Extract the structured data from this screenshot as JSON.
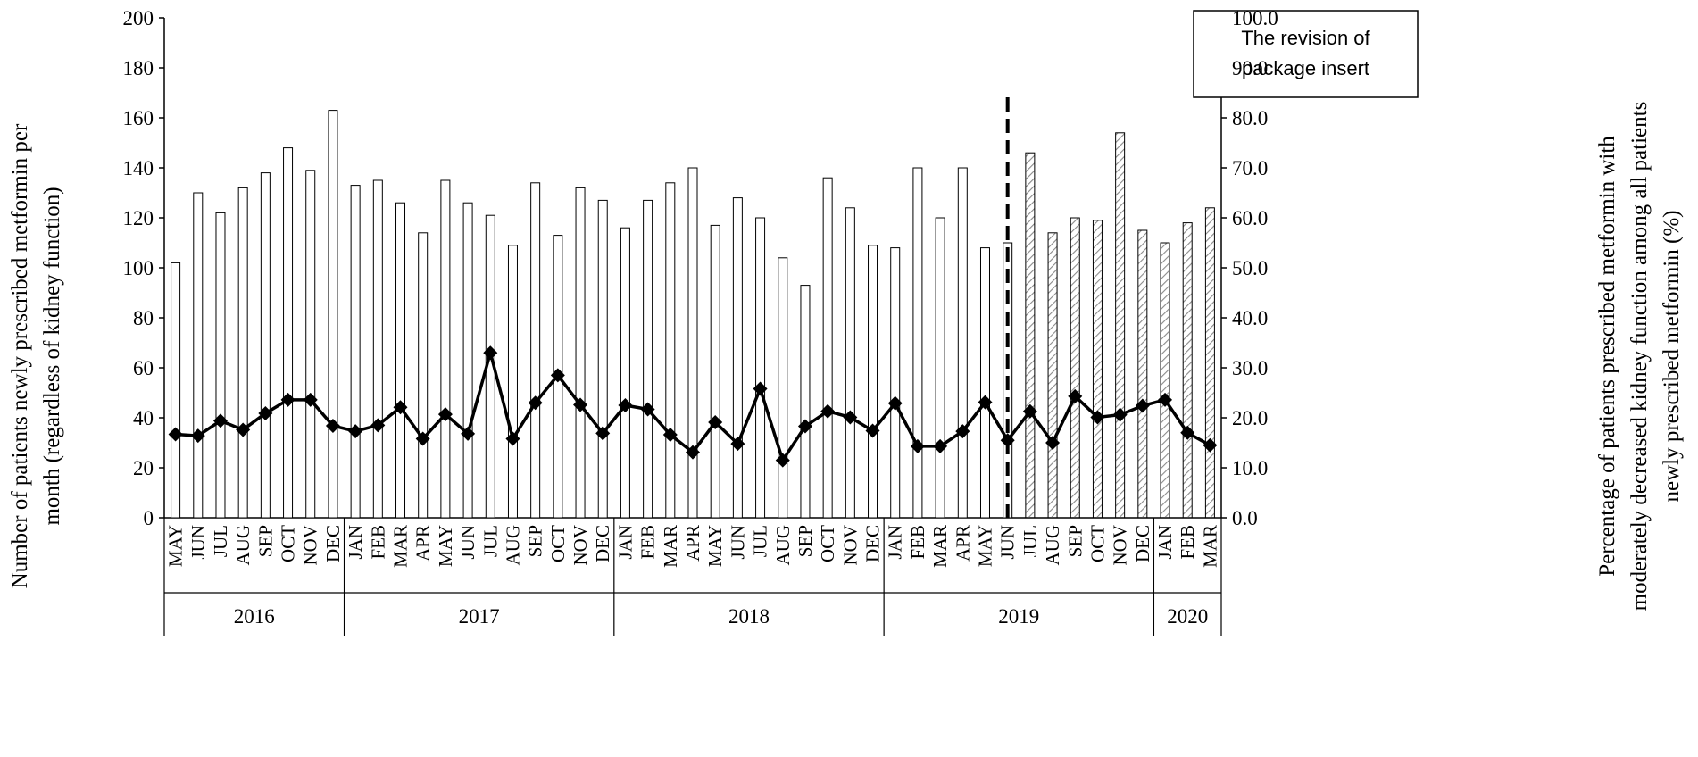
{
  "chart_data": {
    "type": "bar",
    "title": "",
    "ylabel_left": [
      "Number of patients newly prescribed metformin per",
      "month (regardless of kidney function)"
    ],
    "ylabel_right": [
      "Percentage of patients prescribed metformin with",
      "moderately decreased kidney function among all patients",
      "newly prescribed metformin (%)"
    ],
    "left_axis": {
      "min": 0,
      "max": 200,
      "step": 20,
      "ticks": [
        "0",
        "20",
        "40",
        "60",
        "80",
        "100",
        "120",
        "140",
        "160",
        "180",
        "200"
      ]
    },
    "right_axis": {
      "min": 0,
      "max": 100,
      "step": 10,
      "ticks": [
        "0.0",
        "10.0",
        "20.0",
        "30.0",
        "40.0",
        "50.0",
        "60.0",
        "70.0",
        "80.0",
        "90.0",
        "100.0"
      ]
    },
    "months": [
      "MAY",
      "JUN",
      "JUL",
      "AUG",
      "SEP",
      "OCT",
      "NOV",
      "DEC",
      "JAN",
      "FEB",
      "MAR",
      "APR",
      "MAY",
      "JUN",
      "JUL",
      "AUG",
      "SEP",
      "OCT",
      "NOV",
      "DEC",
      "JAN",
      "FEB",
      "MAR",
      "APR",
      "MAY",
      "JUN",
      "JUL",
      "AUG",
      "SEP",
      "OCT",
      "NOV",
      "DEC",
      "JAN",
      "FEB",
      "MAR",
      "APR",
      "MAY",
      "JUN",
      "JUL",
      "AUG",
      "SEP",
      "OCT",
      "NOV",
      "DEC",
      "JAN",
      "FEB",
      "MAR"
    ],
    "years": [
      {
        "label": "2016",
        "count": 8
      },
      {
        "label": "2017",
        "count": 12
      },
      {
        "label": "2018",
        "count": 12
      },
      {
        "label": "2019",
        "count": 12
      },
      {
        "label": "2020",
        "count": 3
      }
    ],
    "series": [
      {
        "type": "bar",
        "axis": "left",
        "values": [
          102,
          130,
          122,
          132,
          138,
          148,
          139,
          163,
          133,
          135,
          126,
          114,
          135,
          126,
          121,
          109,
          134,
          113,
          132,
          127,
          116,
          127,
          134,
          140,
          117,
          128,
          120,
          104,
          93,
          136,
          124,
          109,
          108,
          140,
          120,
          140,
          108,
          110,
          146,
          114,
          120,
          119,
          154,
          115,
          110,
          118,
          124
        ],
        "hatched_from_index": 38
      },
      {
        "type": "line",
        "axis": "right",
        "values": [
          16.7,
          16.4,
          19.4,
          17.6,
          20.9,
          23.6,
          23.6,
          18.4,
          17.3,
          18.5,
          22.1,
          15.8,
          20.7,
          16.8,
          33.0,
          15.8,
          23.0,
          28.5,
          22.6,
          16.9,
          22.5,
          21.7,
          16.6,
          13.1,
          19.1,
          14.8,
          25.8,
          11.5,
          18.3,
          21.3,
          20.1,
          17.4,
          22.9,
          14.3,
          14.3,
          17.3,
          23.1,
          15.5,
          21.3,
          15.0,
          24.3,
          20.1,
          20.6,
          22.4,
          23.6,
          17.0,
          14.5
        ],
        "marker": "diamond"
      }
    ],
    "annotation": {
      "lines": [
        "The revision of",
        "package insert"
      ],
      "at_index": 37
    },
    "colors": {
      "bar_fill": "#ffffff",
      "bar_stroke": "#000000",
      "hatch": "#808080",
      "line": "#000000",
      "annotation_line": "#000000"
    }
  }
}
